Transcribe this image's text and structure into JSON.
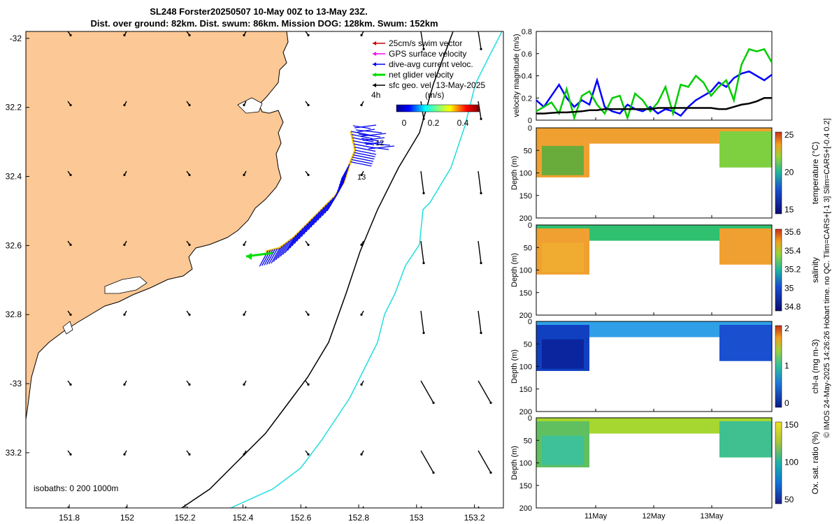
{
  "chart_data": {
    "type": "map+line+heatmap",
    "title_line1": "SL248 Forster20250507 10-May 00Z to 13-May 23Z.",
    "title_line2": "Dist. over ground: 82km. Dist. swum: 86km. Mission DOG: 128km. Swum: 152km",
    "map": {
      "lon_ticks": [
        151.8,
        152,
        152.2,
        152.4,
        152.6,
        152.8,
        153,
        153.2
      ],
      "lon_labels": [
        "151.8",
        "152",
        "152.2",
        "152.4",
        "152.6",
        "152.8",
        "153",
        "153.2"
      ],
      "lat_ticks": [
        -32,
        -32.2,
        -32.4,
        -32.6,
        -32.8,
        -33,
        -33.2
      ],
      "lat_labels": [
        "-32",
        "32.2",
        "32.4",
        "32.6",
        "32.8",
        "-33",
        "33.2"
      ],
      "lon_range": [
        151.65,
        153.3
      ],
      "lat_range": [
        -33.36,
        -31.98
      ],
      "legend": [
        {
          "label": "25cm/s swim vector",
          "color": "#cc0000"
        },
        {
          "label": "GPS surface velocity",
          "color": "#ff00ff"
        },
        {
          "label": "dive-avg current veloc.",
          "color": "#0000ff"
        },
        {
          "label": "net glider velocity",
          "color": "#00dd00"
        },
        {
          "label": "sfc geo. vel. 13-May-2025",
          "color": "#000000"
        }
      ],
      "time_label": "4h",
      "colorbar_title": "(m/s)",
      "colorbar_ticks": [
        "0",
        "0.2",
        "0.4"
      ],
      "track_labels": [
        "12",
        "13"
      ],
      "isobath_note": "isobaths: 0   200  1000m"
    },
    "velocity": {
      "ylabel": "velocity magnitude (m/s)",
      "ylim": [
        0,
        0.8
      ],
      "yticks": [
        "0",
        "0.2",
        "0.4",
        "0.6",
        "0.8"
      ],
      "series": [
        {
          "name": "dive-avg current",
          "color": "#0000ff",
          "values": [
            0.18,
            0.12,
            0.22,
            0.32,
            0.2,
            0.12,
            0.18,
            0.14,
            0.36,
            0.12,
            0.08,
            0.06,
            0.14,
            0.1,
            0.08,
            0.12,
            0.06,
            0.1,
            0.08,
            0.04,
            0.12,
            0.18,
            0.22,
            0.26,
            0.34,
            0.3,
            0.38,
            0.42,
            0.44,
            0.4,
            0.36,
            0.41
          ]
        },
        {
          "name": "net glider",
          "color": "#00cc00",
          "values": [
            0.08,
            0.12,
            0.16,
            0.06,
            0.28,
            0.02,
            0.22,
            0.26,
            0.14,
            0.06,
            0.2,
            0.22,
            0.02,
            0.24,
            0.18,
            0.08,
            0.16,
            0.3,
            0.06,
            0.32,
            0.3,
            0.4,
            0.34,
            0.22,
            0.3,
            0.36,
            0.18,
            0.5,
            0.64,
            0.62,
            0.64,
            0.52
          ]
        },
        {
          "name": "sfc geo",
          "color": "#000000",
          "values": [
            0.06,
            0.06,
            0.065,
            0.07,
            0.07,
            0.075,
            0.08,
            0.09,
            0.09,
            0.1,
            0.1,
            0.1,
            0.1,
            0.1,
            0.1,
            0.1,
            0.11,
            0.11,
            0.11,
            0.11,
            0.11,
            0.11,
            0.11,
            0.11,
            0.1,
            0.1,
            0.12,
            0.14,
            0.15,
            0.17,
            0.2,
            0.2
          ]
        }
      ]
    },
    "profiles": [
      {
        "ylabel": "Depth (m)",
        "cbar_label": "temperature (°C)",
        "cbar_ticks": [
          "25",
          "20",
          "15"
        ],
        "ylim": [
          0,
          200
        ],
        "yticks": [
          "0",
          "50",
          "100",
          "150",
          "200"
        ]
      },
      {
        "ylabel": "Depth (m)",
        "cbar_label": "salinity",
        "cbar_ticks": [
          "35.6",
          "35.4",
          "35.2",
          "35",
          "34.8"
        ],
        "ylim": [
          0,
          200
        ],
        "yticks": [
          "0",
          "50",
          "100",
          "150",
          "200"
        ]
      },
      {
        "ylabel": "Depth (m)",
        "cbar_label": "chl-a (mg m-3)",
        "cbar_ticks": [
          "2",
          "1",
          "0"
        ],
        "ylim": [
          0,
          200
        ],
        "yticks": [
          "0",
          "50",
          "100",
          "150",
          "200"
        ]
      },
      {
        "ylabel": "Depth (m)",
        "cbar_label": "Ox. sat. ratio (%)",
        "cbar_ticks": [
          "150",
          "100",
          "50"
        ],
        "ylim": [
          0,
          200
        ],
        "yticks": [
          "0",
          "50",
          "100",
          "150",
          "200"
        ]
      }
    ],
    "time_ticks": [
      "11May",
      "12May",
      "13May"
    ],
    "side_note": "© IMOS 24-May-2025 14:26:26 Hobart time. no QC. Tlim=CARS+[-1 3] Slim=CARS+[-0.4 0.2]"
  }
}
